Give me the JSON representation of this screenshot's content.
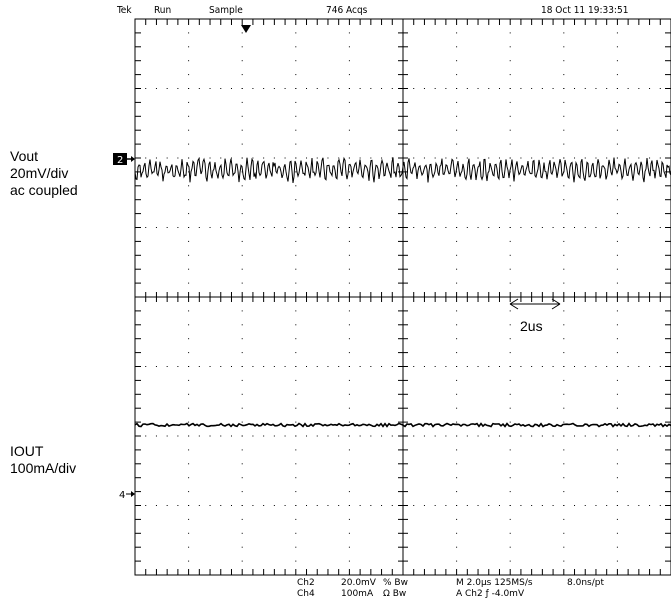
{
  "header": {
    "brand": "Tek",
    "mode": "Run",
    "acq_mode": "Sample",
    "acq_count": "746 Acqs",
    "datetime": "18 Oct 11 19:33:51"
  },
  "traces": {
    "ch2": {
      "marker": "2",
      "label_lines": [
        "Vout",
        "20mV/div",
        "ac coupled"
      ]
    },
    "ch4": {
      "marker": "4",
      "label_lines": [
        "IOUT",
        "100mA/div"
      ]
    }
  },
  "annotation": {
    "time_span": "2us"
  },
  "readout": {
    "ch2_name": "Ch2",
    "ch2_scale": "20.0mV",
    "ch2_coupling": "% Bw",
    "ch4_name": "Ch4",
    "ch4_scale": "100mA",
    "ch4_coupling": "Ω Bw",
    "horizontal": "M 2.0µs 125MS/s",
    "resolution": "8.0ns/pt",
    "trigger": "A Ch2 ƒ -4.0mV"
  }
}
